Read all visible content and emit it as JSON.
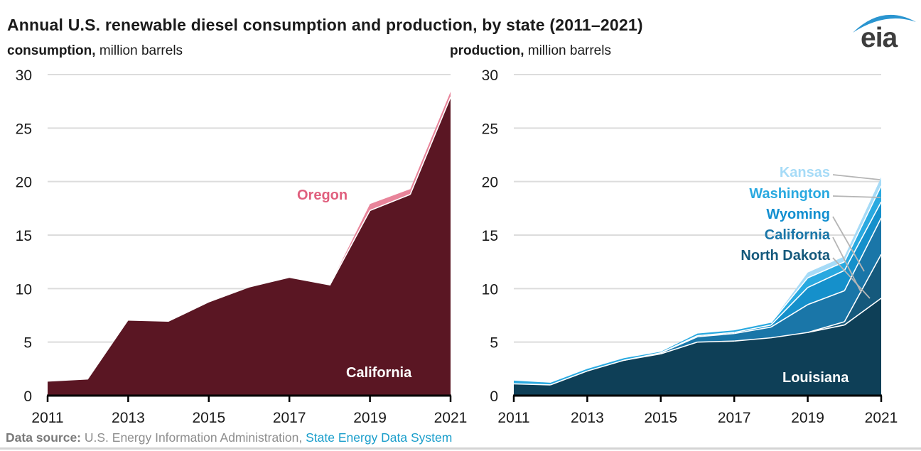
{
  "header": {
    "title": "Annual U.S. renewable diesel consumption and production, by state (2011–2021)",
    "logo_text": "eia",
    "logo_swoosh_color": "#2a95d0"
  },
  "chart_data": [
    {
      "type": "area",
      "stacked": true,
      "subtitle_bold": "consumption,",
      "subtitle_rest": " million barrels",
      "x": [
        2011,
        2012,
        2013,
        2014,
        2015,
        2016,
        2017,
        2018,
        2019,
        2020,
        2021
      ],
      "xticks": [
        2011,
        2013,
        2015,
        2017,
        2019,
        2021
      ],
      "yticks": [
        0,
        5,
        10,
        15,
        20,
        25,
        30
      ],
      "ylim": [
        0,
        30
      ],
      "grid": "horizontal",
      "series": [
        {
          "name": "California",
          "color": "#5a1623",
          "values": [
            1.3,
            1.5,
            7.0,
            6.9,
            8.7,
            10.1,
            11.0,
            10.3,
            17.3,
            18.8,
            27.9
          ]
        },
        {
          "name": "Oregon",
          "color": "#e8849a",
          "values": [
            0,
            0,
            0,
            0,
            0,
            0,
            0,
            0,
            0.6,
            0.5,
            0.5
          ]
        }
      ]
    },
    {
      "type": "area",
      "stacked": true,
      "subtitle_bold": "production,",
      "subtitle_rest": " million barrels",
      "x": [
        2011,
        2012,
        2013,
        2014,
        2015,
        2016,
        2017,
        2018,
        2019,
        2020,
        2021
      ],
      "xticks": [
        2011,
        2013,
        2015,
        2017,
        2019,
        2021
      ],
      "yticks": [
        0,
        5,
        10,
        15,
        20,
        25,
        30
      ],
      "ylim": [
        0,
        30
      ],
      "grid": "horizontal",
      "series": [
        {
          "name": "Louisiana",
          "color": "#0e3f57",
          "values": [
            1.1,
            1.0,
            2.3,
            3.3,
            3.9,
            5.0,
            5.1,
            5.4,
            5.9,
            6.6,
            9.1
          ]
        },
        {
          "name": "North Dakota",
          "color": "#15597c",
          "values": [
            0,
            0,
            0,
            0,
            0,
            0,
            0,
            0,
            0,
            0.3,
            4.1
          ]
        },
        {
          "name": "California",
          "color": "#1a76a8",
          "values": [
            0,
            0,
            0,
            0,
            0.1,
            0.5,
            0.7,
            1.0,
            2.6,
            2.9,
            3.4
          ]
        },
        {
          "name": "Wyoming",
          "color": "#1590cb",
          "values": [
            0,
            0,
            0,
            0,
            0,
            0.1,
            0.1,
            0.2,
            1.6,
            1.9,
            1.5
          ]
        },
        {
          "name": "Washington",
          "color": "#29a9e0",
          "values": [
            0.3,
            0.2,
            0.2,
            0.2,
            0.1,
            0.2,
            0.2,
            0.2,
            0.9,
            0.8,
            1.5
          ]
        },
        {
          "name": "Kansas",
          "color": "#a6dbf7",
          "values": [
            0,
            0,
            0,
            0,
            0,
            0,
            0,
            0,
            0.5,
            0.5,
            0.8
          ]
        }
      ]
    }
  ],
  "annotations": {
    "oregon": {
      "label": "Oregon",
      "color": "#e0607e"
    },
    "california_left": {
      "label": "California",
      "color": "#ffffff"
    },
    "louisiana": {
      "label": "Louisiana",
      "color": "#ffffff"
    },
    "legend": [
      {
        "label": "Kansas",
        "color": "#a6dbf7"
      },
      {
        "label": "Washington",
        "color": "#29a9e0"
      },
      {
        "label": "Wyoming",
        "color": "#128fd0"
      },
      {
        "label": "California",
        "color": "#1a76a8"
      },
      {
        "label": "North Dakota",
        "color": "#15597c"
      }
    ]
  },
  "footer": {
    "lead": "Data source: ",
    "body": "U.S. Energy Information Administration, ",
    "link": "State Energy Data System",
    "link_color": "#1a9ecb"
  }
}
